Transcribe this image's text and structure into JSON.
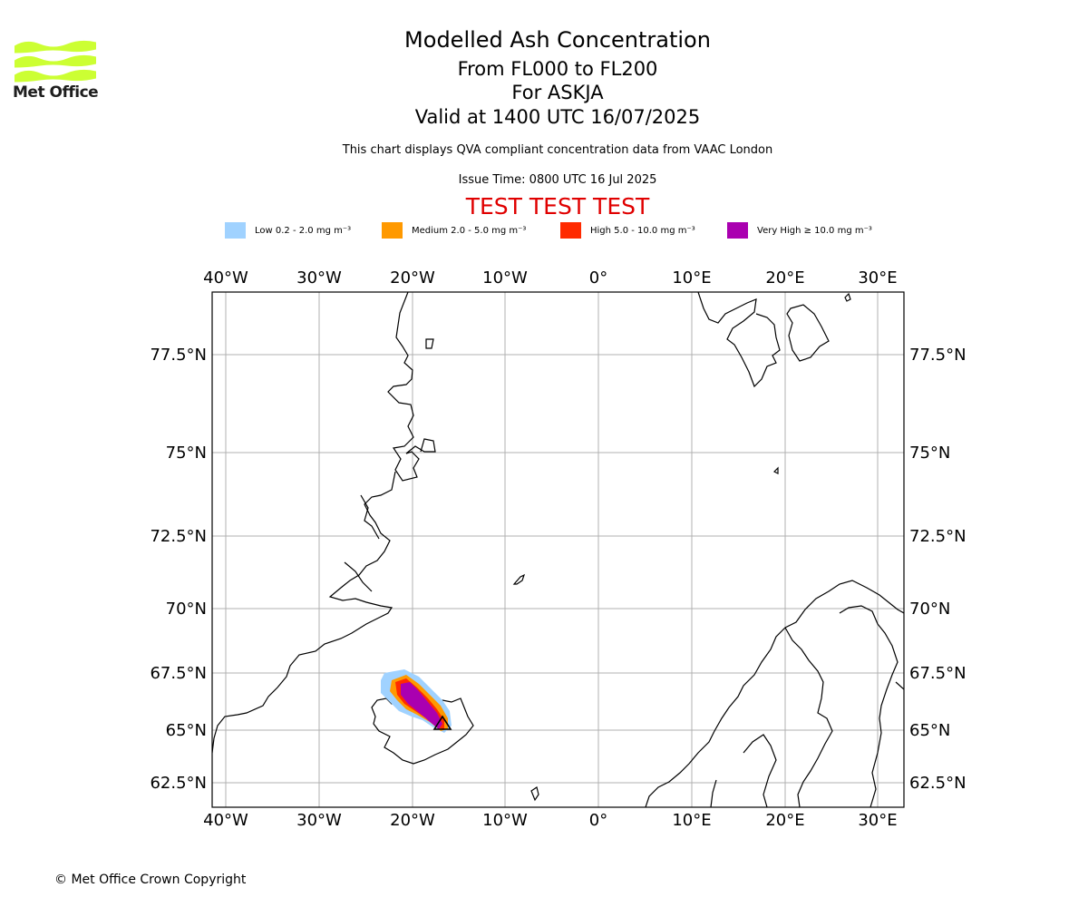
{
  "header": {
    "title": "Modelled Ash Concentration",
    "subtitle_levels": "From FL000 to FL200",
    "subtitle_volcano": "For ASKJA",
    "subtitle_valid": "Valid at 1400 UTC 16/07/2025",
    "description": "This chart displays QVA compliant concentration data from VAAC London",
    "issue_time": "Issue Time: 0800 UTC 16 Jul 2025",
    "test_banner": "TEST TEST TEST"
  },
  "logo": {
    "text": "Met Office",
    "color": "#ccff33"
  },
  "legend": [
    {
      "label": "Low 0.2 - 2.0 mg m⁻³",
      "color": "#a0d2ff"
    },
    {
      "label": "Medium 2.0 - 5.0 mg m⁻³",
      "color": "#ff9900"
    },
    {
      "label": "High 5.0 - 10.0 mg m⁻³",
      "color": "#ff2a00"
    },
    {
      "label": "Very High ≥ 10.0 mg m⁻³",
      "color": "#aa00b0"
    }
  ],
  "map": {
    "lon_ticks": [
      "40°W",
      "30°W",
      "20°W",
      "10°W",
      "0°",
      "10°E",
      "20°E",
      "30°E"
    ],
    "lat_ticks": [
      "77.5°N",
      "75°N",
      "72.5°N",
      "70°N",
      "67.5°N",
      "65°N",
      "62.5°N"
    ],
    "gridline_color": "#b0b0b0",
    "volcano_marker": "triangle"
  },
  "footer": {
    "copyright": "© Met Office Crown Copyright"
  }
}
